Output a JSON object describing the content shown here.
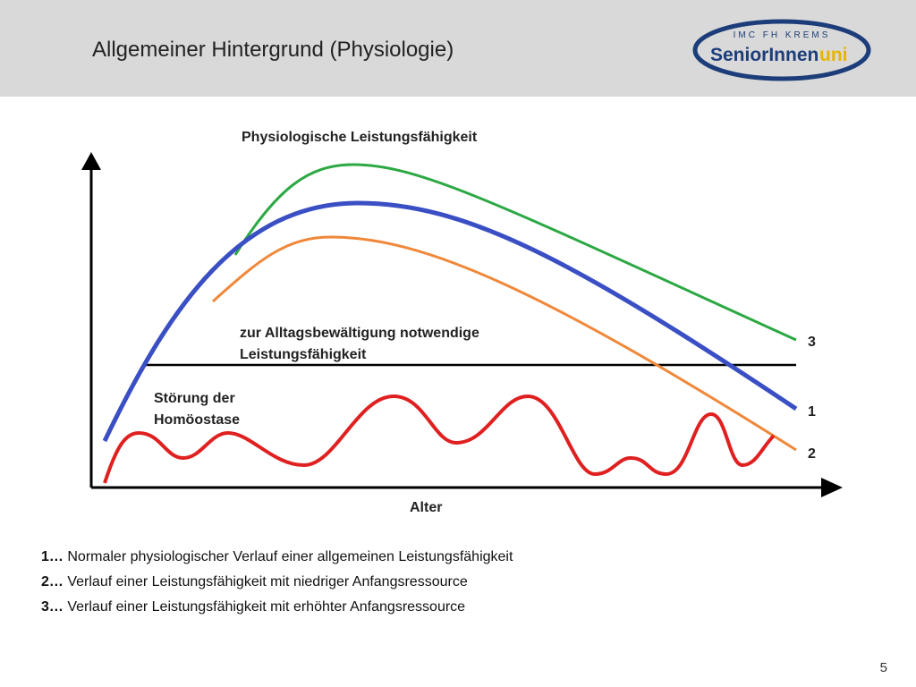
{
  "header": {
    "title": "Allgemeiner Hintergrund (Physiologie)",
    "logo": {
      "top": "IMC FH KREMS",
      "main": "SeniorInnen",
      "accent": "uni"
    }
  },
  "diagram": {
    "title": "Physiologische Leistungsfähigkeit",
    "threshold_label": [
      "zur Alltagsbewältigung notwendige",
      "Leistungsfähigkeit"
    ],
    "disturbance_label": [
      "Störung der",
      "Homöostase"
    ],
    "x_axis_label": "Alter",
    "curve_labels": [
      "3",
      "1",
      "2"
    ]
  },
  "legend": [
    {
      "number": "1…",
      "text": "Normaler physiologischer Verlauf einer allgemeinen Leistungsfähigkeit"
    },
    {
      "number": "2…",
      "text": "Verlauf einer Leistungsfähigkeit mit niedriger Anfangsressource"
    },
    {
      "number": "3…",
      "text": "Verlauf einer Leistungsfähigkeit mit erhöhter Anfangsressource"
    }
  ],
  "page_number": "5"
}
